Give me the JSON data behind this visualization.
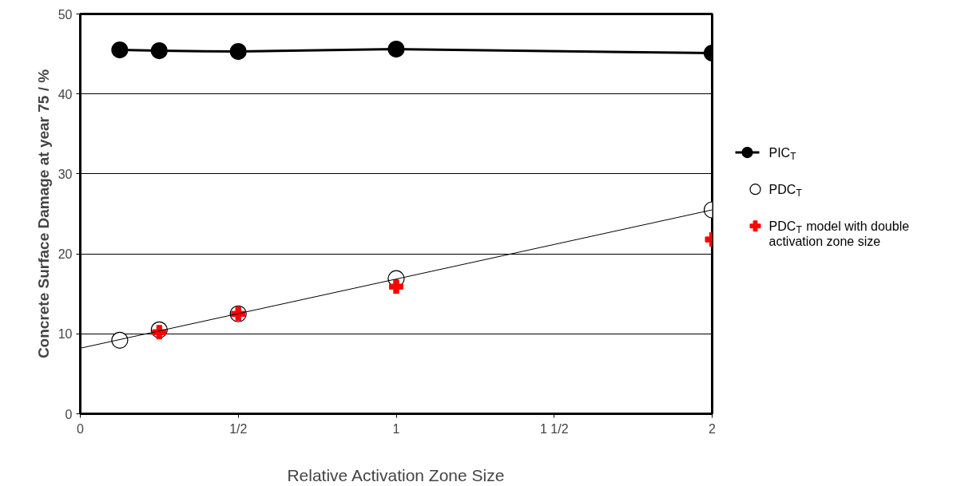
{
  "chart_data": {
    "type": "scatter",
    "xlabel": "Relative Activation Zone Size",
    "ylabel": "Concrete Surface Damage at year 75 / %",
    "xlim": [
      0,
      2
    ],
    "xticks": [
      0,
      {
        "value": 0.5,
        "label": "1/2"
      },
      1,
      {
        "value": 1.5,
        "label": "1 1/2"
      },
      2
    ],
    "ylim": [
      0,
      50
    ],
    "yticks": [
      0,
      10,
      20,
      30,
      40,
      50
    ],
    "grid": "y",
    "legend": "right",
    "series": [
      {
        "name": "PIC$_{T}$",
        "type": "line",
        "marker": "circle",
        "color": "#000000",
        "x": [
          0.125,
          0.25,
          0.5,
          1,
          2
        ],
        "values": [
          45.5,
          45.4,
          45.3,
          45.6,
          45.1
        ]
      },
      {
        "name": "PDC$_{T}$",
        "marker": "circle",
        "color": "#000000",
        "x": [
          0.125,
          0.25,
          0.5,
          1,
          2
        ],
        "values": [
          9.2,
          10.5,
          12.5,
          16.9,
          25.5
        ]
      },
      {
        "name": "PDC$_{T}$ model with double activation zone size",
        "marker": "cross",
        "color": "#ff0000",
        "x": [
          0.25,
          0.5,
          1,
          2
        ],
        "values": [
          10.2,
          12.5,
          15.9,
          21.8
        ]
      },
      {
        "type": "line",
        "marker": "none",
        "color": "#000000",
        "x": [
          0,
          2
        ],
        "values": [
          8.2,
          25.5
        ]
      }
    ]
  }
}
